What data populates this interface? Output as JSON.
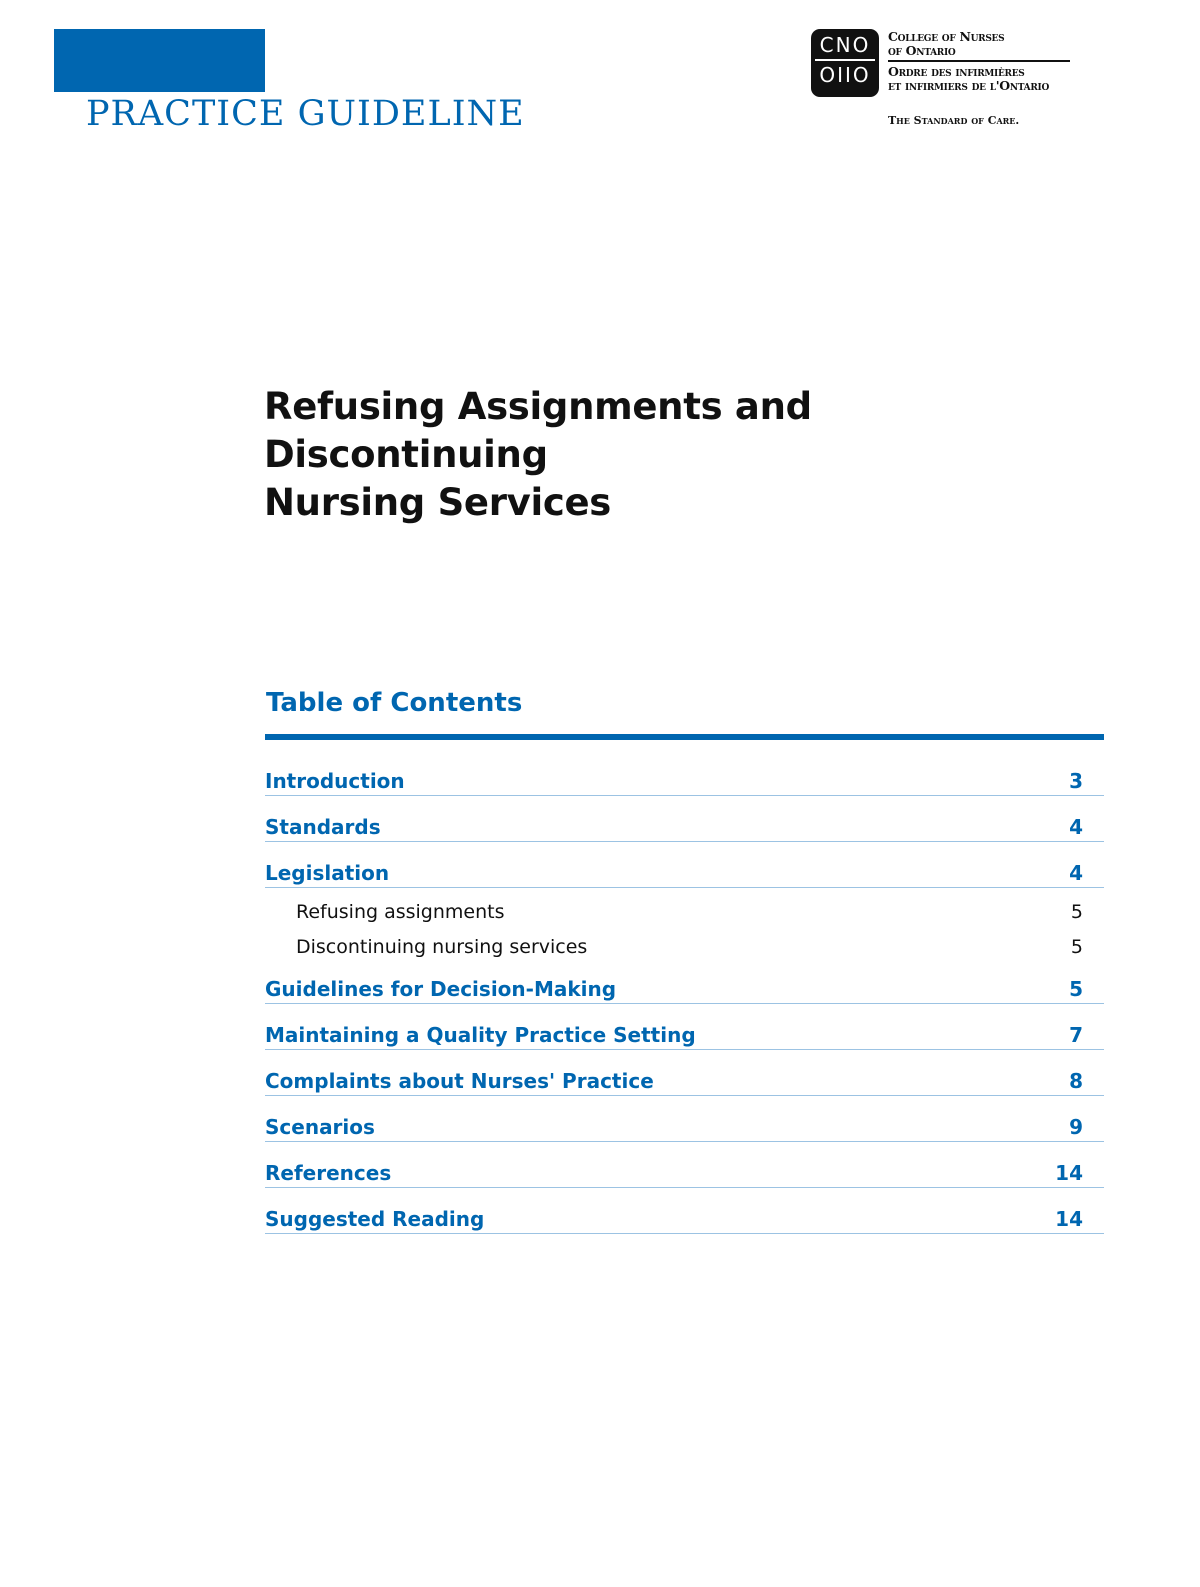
{
  "header": {
    "banner_title": "PRACTICE GUIDELINE",
    "logo": {
      "monogram_top": "CNO",
      "monogram_bottom": "OIIO",
      "org_en_1": "College of Nurses",
      "org_en_2": "of Ontario",
      "org_fr_1": "Ordre des infirmières",
      "org_fr_2": "et infirmiers de l'Ontario",
      "tagline": "The Standard of Care."
    },
    "brand_color": "#0066b0"
  },
  "document": {
    "title_line1": "Refusing Assignments and Discontinuing",
    "title_line2": "Nursing Services"
  },
  "toc": {
    "heading": "Table of Contents",
    "entries": [
      {
        "label": "Introduction",
        "page": "3"
      },
      {
        "label": "Standards",
        "page": "4"
      },
      {
        "label": "Legislation",
        "page": "4",
        "children": [
          {
            "label": "Refusing assignments",
            "page": "5"
          },
          {
            "label": "Discontinuing nursing services",
            "page": "5"
          }
        ]
      },
      {
        "label": "Guidelines for Decision-Making",
        "page": "5"
      },
      {
        "label": "Maintaining a Quality Practice Setting",
        "page": "7"
      },
      {
        "label": "Complaints about Nurses' Practice",
        "page": "8"
      },
      {
        "label": "Scenarios",
        "page": "9"
      },
      {
        "label": "References",
        "page": "14"
      },
      {
        "label": "Suggested Reading",
        "page": "14"
      }
    ]
  }
}
